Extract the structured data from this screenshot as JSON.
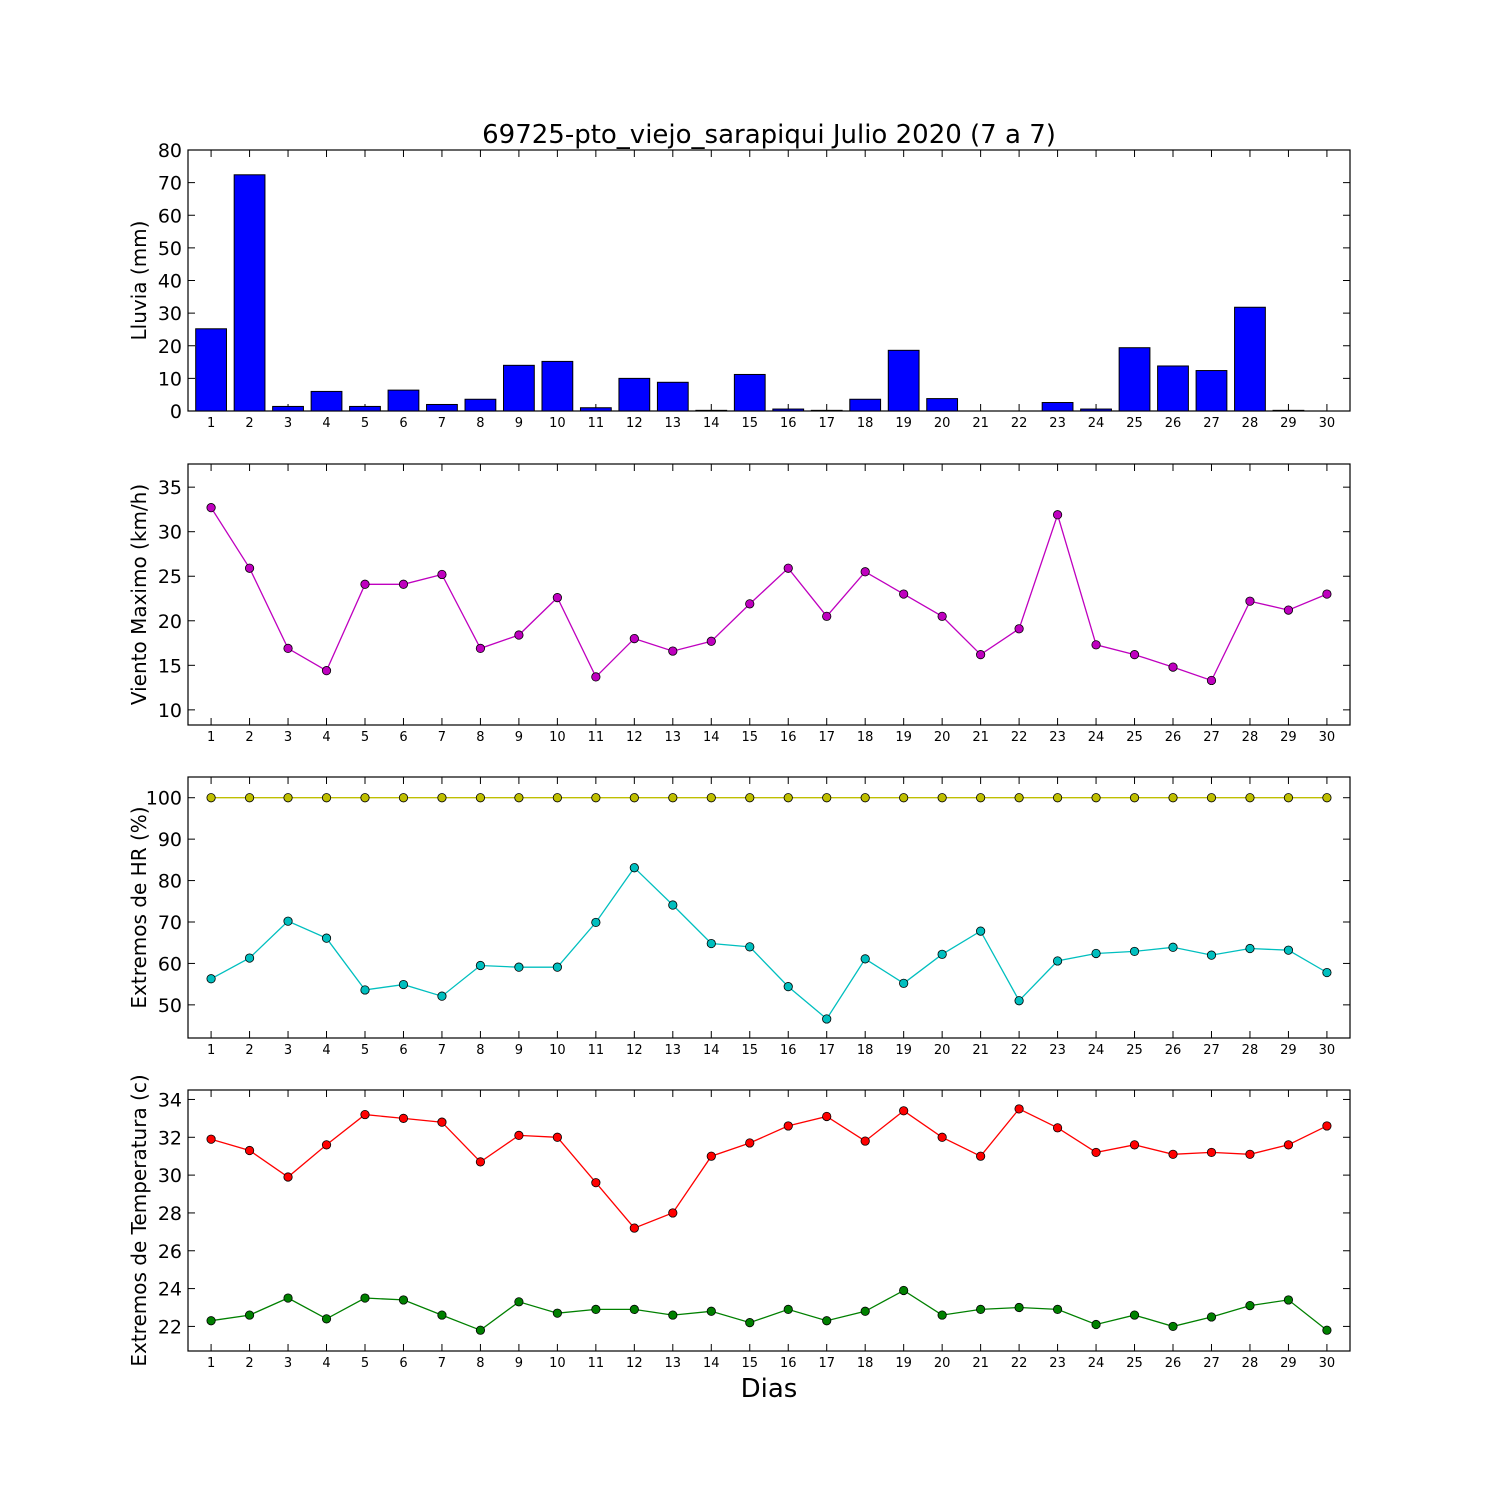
{
  "chart_data": {
    "title": "69725-pto_viejo_sarapiqui Julio 2020  (7 a 7)",
    "xlabel": "Dias",
    "days": [
      1,
      2,
      3,
      4,
      5,
      6,
      7,
      8,
      9,
      10,
      11,
      12,
      13,
      14,
      15,
      16,
      17,
      18,
      19,
      20,
      21,
      22,
      23,
      24,
      25,
      26,
      27,
      28,
      29,
      30
    ],
    "panels": [
      {
        "id": "lluvia",
        "type": "bar",
        "ylabel": "Lluvia (mm)",
        "ylim": [
          0,
          80
        ],
        "yticks": [
          0,
          10,
          20,
          30,
          40,
          50,
          60,
          70,
          80
        ],
        "series": [
          {
            "color": "#0000ff",
            "values": [
              25.2,
              72.4,
              1.4,
              6.0,
              1.4,
              6.4,
              2.0,
              3.6,
              14.0,
              15.2,
              1.0,
              10.0,
              8.8,
              0.2,
              11.2,
              0.6,
              0.2,
              3.6,
              18.6,
              3.8,
              0,
              0,
              2.6,
              0.6,
              19.4,
              13.8,
              12.4,
              31.8,
              0.2,
              0
            ]
          }
        ]
      },
      {
        "id": "viento",
        "type": "line",
        "ylabel": "Viento Maximo (km/h)",
        "ylim": [
          8.3,
          37.6
        ],
        "yticks": [
          10,
          15,
          20,
          25,
          30,
          35
        ],
        "series": [
          {
            "color": "#bf00bf",
            "values": [
              32.7,
              25.9,
              16.9,
              14.4,
              24.1,
              24.1,
              25.2,
              16.9,
              18.4,
              22.6,
              13.7,
              18.0,
              16.6,
              17.7,
              21.9,
              25.9,
              20.5,
              25.5,
              23.0,
              20.5,
              16.2,
              19.1,
              31.9,
              17.3,
              16.2,
              14.8,
              13.3,
              22.2,
              21.2,
              23.0
            ]
          }
        ]
      },
      {
        "id": "hr",
        "type": "line",
        "ylabel": "Extremos de HR (%)",
        "ylim": [
          42,
          105
        ],
        "yticks": [
          50,
          60,
          70,
          80,
          90,
          100
        ],
        "series": [
          {
            "color": "#bfbf00",
            "values": [
              100,
              100,
              100,
              100,
              100,
              100,
              100,
              100,
              100,
              100,
              100,
              100,
              100,
              100,
              100,
              100,
              100,
              100,
              100,
              100,
              100,
              100,
              100,
              100,
              100,
              100,
              100,
              100,
              100,
              100
            ]
          },
          {
            "color": "#00bfbf",
            "values": [
              56.3,
              61.3,
              70.2,
              66.1,
              53.6,
              54.9,
              52.1,
              59.5,
              59.1,
              59.1,
              69.9,
              83.1,
              74.1,
              64.8,
              64.0,
              54.4,
              46.6,
              61.1,
              55.2,
              62.2,
              67.8,
              51.0,
              60.6,
              62.4,
              62.9,
              63.9,
              62.0,
              63.6,
              63.2,
              57.8
            ]
          }
        ]
      },
      {
        "id": "temp",
        "type": "line",
        "ylabel": "Extremos de Temperatura (c)",
        "ylim": [
          20.7,
          34.5
        ],
        "yticks": [
          22,
          24,
          26,
          28,
          30,
          32,
          34
        ],
        "series": [
          {
            "color": "#ff0000",
            "values": [
              31.9,
              31.3,
              29.9,
              31.6,
              33.2,
              33.0,
              32.8,
              30.7,
              32.1,
              32.0,
              29.6,
              27.2,
              28.0,
              31.0,
              31.7,
              32.6,
              33.1,
              31.8,
              33.4,
              32.0,
              31.0,
              33.5,
              32.5,
              31.2,
              31.6,
              31.1,
              31.2,
              31.1,
              31.6,
              32.6
            ]
          },
          {
            "color": "#008000",
            "values": [
              22.3,
              22.6,
              23.5,
              22.4,
              23.5,
              23.4,
              22.6,
              21.8,
              23.3,
              22.7,
              22.9,
              22.9,
              22.6,
              22.8,
              22.2,
              22.9,
              22.3,
              22.8,
              23.9,
              22.6,
              22.9,
              23.0,
              22.9,
              22.1,
              22.6,
              22.0,
              22.5,
              23.1,
              23.4,
              21.8
            ]
          }
        ]
      }
    ]
  }
}
